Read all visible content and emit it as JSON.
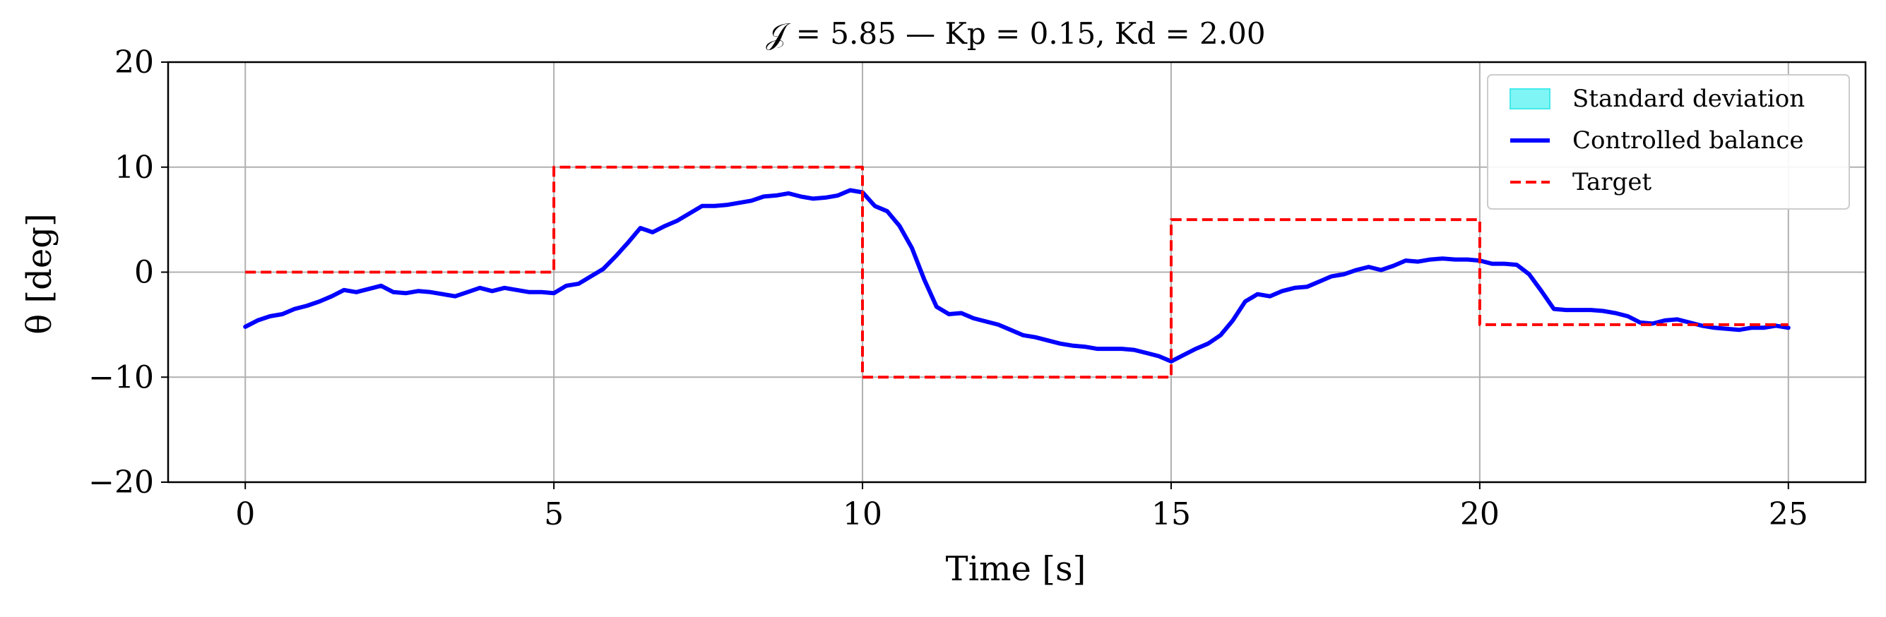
{
  "chart_data": {
    "type": "line",
    "title": "𝒥 = 5.85 — Kp = 0.15, Kd = 2.00",
    "xlabel": "Time [s]",
    "ylabel": "θ [deg]",
    "xlim": [
      -1.25,
      26.25
    ],
    "ylim": [
      -20,
      20
    ],
    "x_ticks": [
      0,
      5,
      10,
      15,
      20,
      25
    ],
    "x_tick_labels": [
      "0",
      "5",
      "10",
      "15",
      "20",
      "25"
    ],
    "y_ticks": [
      -20,
      -10,
      0,
      10,
      20
    ],
    "y_tick_labels": [
      "−20",
      "−10",
      "0",
      "10",
      "20"
    ],
    "grid": true,
    "legend": {
      "placement": "top-right",
      "entries": [
        {
          "label": "Standard deviation",
          "style": "patch",
          "color": "#7ff5f5",
          "edge": "#44eaea"
        },
        {
          "label": "Controlled balance",
          "style": "solid",
          "color": "#0000ff"
        },
        {
          "label": "Target",
          "style": "dashed",
          "color": "#ff0000"
        }
      ]
    },
    "series": [
      {
        "name": "Controlled balance",
        "color": "#0000ff",
        "style": "solid",
        "x": [
          0,
          0.2,
          0.4,
          0.6,
          0.8,
          1.0,
          1.2,
          1.4,
          1.6,
          1.8,
          2.0,
          2.2,
          2.4,
          2.6,
          2.8,
          3.0,
          3.2,
          3.4,
          3.6,
          3.8,
          4.0,
          4.2,
          4.4,
          4.6,
          4.8,
          5.0,
          5.2,
          5.4,
          5.6,
          5.8,
          6.0,
          6.2,
          6.4,
          6.6,
          6.8,
          7.0,
          7.2,
          7.4,
          7.6,
          7.8,
          8.0,
          8.2,
          8.4,
          8.6,
          8.8,
          9.0,
          9.2,
          9.4,
          9.6,
          9.8,
          10.0,
          10.2,
          10.4,
          10.6,
          10.8,
          11.0,
          11.2,
          11.4,
          11.6,
          11.8,
          12.0,
          12.2,
          12.4,
          12.6,
          12.8,
          13.0,
          13.2,
          13.4,
          13.6,
          13.8,
          14.0,
          14.2,
          14.4,
          14.6,
          14.8,
          15.0,
          15.2,
          15.4,
          15.6,
          15.8,
          16.0,
          16.2,
          16.4,
          16.6,
          16.8,
          17.0,
          17.2,
          17.4,
          17.6,
          17.8,
          18.0,
          18.2,
          18.4,
          18.6,
          18.8,
          19.0,
          19.2,
          19.4,
          19.6,
          19.8,
          20.0,
          20.2,
          20.4,
          20.6,
          20.8,
          21.0,
          21.2,
          21.4,
          21.6,
          21.8,
          22.0,
          22.2,
          22.4,
          22.6,
          22.8,
          23.0,
          23.2,
          23.4,
          23.6,
          23.8,
          24.0,
          24.2,
          24.4,
          24.6,
          24.8,
          25.0
        ],
        "y": [
          -5.2,
          -4.6,
          -4.2,
          -4.0,
          -3.5,
          -3.2,
          -2.8,
          -2.3,
          -1.7,
          -1.9,
          -1.6,
          -1.3,
          -1.9,
          -2.0,
          -1.8,
          -1.9,
          -2.1,
          -2.3,
          -1.9,
          -1.5,
          -1.8,
          -1.5,
          -1.7,
          -1.9,
          -1.9,
          -2.0,
          -1.3,
          -1.1,
          -0.4,
          0.3,
          1.5,
          2.8,
          4.2,
          3.8,
          4.4,
          4.9,
          5.6,
          6.3,
          6.3,
          6.4,
          6.6,
          6.8,
          7.2,
          7.3,
          7.5,
          7.2,
          7.0,
          7.1,
          7.3,
          7.8,
          7.6,
          6.3,
          5.8,
          4.4,
          2.3,
          -0.7,
          -3.3,
          -4.0,
          -3.9,
          -4.4,
          -4.7,
          -5.0,
          -5.5,
          -6.0,
          -6.2,
          -6.5,
          -6.8,
          -7.0,
          -7.1,
          -7.3,
          -7.3,
          -7.3,
          -7.4,
          -7.7,
          -8.0,
          -8.5,
          -7.9,
          -7.3,
          -6.8,
          -6.0,
          -4.6,
          -2.8,
          -2.1,
          -2.3,
          -1.8,
          -1.5,
          -1.4,
          -0.9,
          -0.4,
          -0.2,
          0.2,
          0.5,
          0.2,
          0.6,
          1.1,
          1.0,
          1.2,
          1.3,
          1.2,
          1.2,
          1.1,
          0.8,
          0.8,
          0.7,
          -0.2,
          -1.8,
          -3.5,
          -3.6,
          -3.6,
          -3.6,
          -3.7,
          -3.9,
          -4.2,
          -4.8,
          -4.9,
          -4.6,
          -4.5,
          -4.8,
          -5.1,
          -5.3,
          -5.4,
          -5.5,
          -5.3,
          -5.3,
          -5.1,
          -5.3
        ]
      },
      {
        "name": "Target",
        "color": "#ff0000",
        "style": "dashed",
        "x": [
          0,
          5,
          5,
          10,
          10,
          15,
          15,
          20,
          20,
          25
        ],
        "y": [
          0,
          0,
          10,
          10,
          -10,
          -10,
          5,
          5,
          -5,
          -5
        ]
      }
    ]
  }
}
